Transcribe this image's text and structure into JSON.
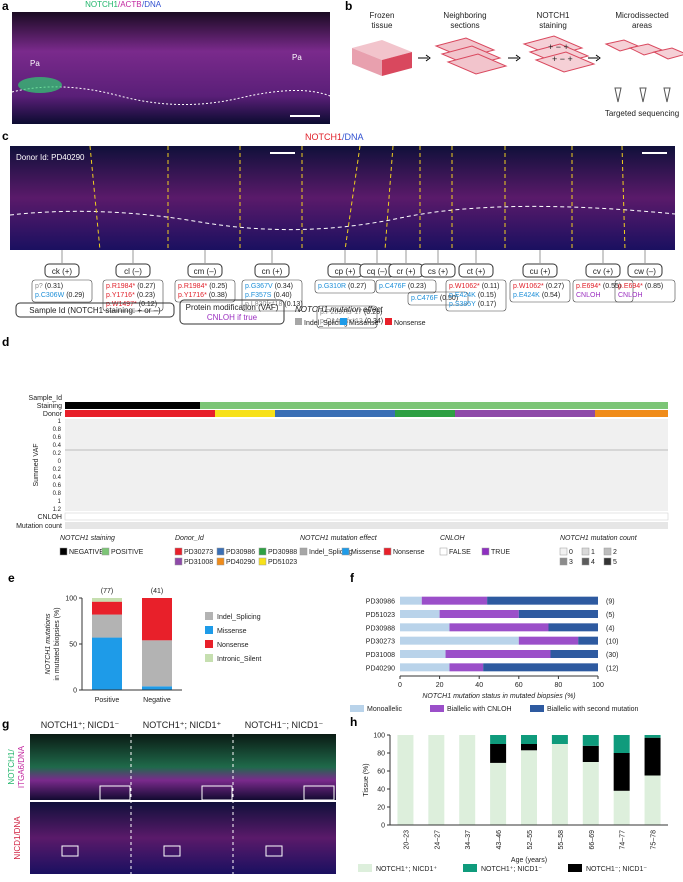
{
  "panels": {
    "a": {
      "letter": "a",
      "stain": [
        "NOTCH1",
        "/ACTB",
        "/DNA"
      ],
      "markers": [
        "Pa",
        "Pa"
      ]
    },
    "b": {
      "letter": "b",
      "steps": [
        [
          "Frozen",
          "tissue"
        ],
        [
          "Neighboring",
          "sections"
        ],
        [
          "NOTCH1",
          "staining"
        ],
        [
          "Microdissected",
          "areas"
        ]
      ],
      "output": "Targeted sequencing"
    },
    "c": {
      "letter": "c",
      "stain": [
        "NOTCH1",
        "/DNA"
      ],
      "donor": "Donor Id: PD40290",
      "samples": [
        {
          "id": "ck (+)",
          "mutations": [
            {
              "protein": "p?",
              "vaf": "(0.31)",
              "color": "#8c8c8c"
            },
            {
              "protein": "p.C306W",
              "vaf": "(0.29)",
              "color": "#1e8fd8"
            }
          ]
        },
        {
          "id": "cl (–)",
          "mutations": [
            {
              "protein": "p.R1984*",
              "vaf": "(0.27)",
              "color": "#e0202a"
            },
            {
              "protein": "p.Y1716*",
              "vaf": "(0.23)",
              "color": "#e0202a"
            },
            {
              "protein": "p.W1497*",
              "vaf": "(0.12)",
              "color": "#e0202a"
            }
          ]
        },
        {
          "id": "cm (–)",
          "mutations": [
            {
              "protein": "p.R1984*",
              "vaf": "(0.25)",
              "color": "#e0202a"
            },
            {
              "protein": "p.Y1716*",
              "vaf": "(0.38)",
              "color": "#e0202a"
            }
          ]
        },
        {
          "id": "cn (+)",
          "mutations": [
            {
              "protein": "p.G367V",
              "vaf": "(0.34)",
              "color": "#1e8fd8"
            },
            {
              "protein": "p.F357S",
              "vaf": "(0.40)",
              "color": "#1e8fd8"
            },
            {
              "protein": "p.L830fs*18",
              "vaf": "(0.13)",
              "color": "#8c8c8c"
            }
          ]
        },
        {
          "id": "cp (+)",
          "mutations": [
            {
              "protein": "p.G310R",
              "vaf": "(0.27)",
              "color": "#1e8fd8"
            }
          ]
        },
        {
          "id": "cq (–)",
          "mutations": [
            {
              "protein": "p.P2097fs*17",
              "vaf": "(0.26)",
              "color": "#8c8c8c"
            },
            {
              "protein": "p.Q1466fs*13",
              "vaf": "(0.34)",
              "color": "#8c8c8c"
            }
          ]
        },
        {
          "id": "cr (+)",
          "mutations": [
            {
              "protein": "p.C476F",
              "vaf": "(0.23)",
              "color": "#1e8fd8"
            }
          ]
        },
        {
          "id": "cs (+)",
          "mutations": [
            {
              "protein": "p.C476F",
              "vaf": "(0.50)",
              "color": "#1e8fd8"
            }
          ]
        },
        {
          "id": "ct (+)",
          "mutations": [
            {
              "protein": "p.W1062*",
              "vaf": "(0.11)",
              "color": "#e0202a"
            },
            {
              "protein": "p.E424K",
              "vaf": "(0.15)",
              "color": "#1e8fd8"
            },
            {
              "protein": "p.S385Y",
              "vaf": "(0.17)",
              "color": "#1e8fd8"
            }
          ]
        },
        {
          "id": "cu (+)",
          "mutations": [
            {
              "protein": "p.W1062*",
              "vaf": "(0.27)",
              "color": "#e0202a"
            },
            {
              "protein": "p.E424K",
              "vaf": "(0.54)",
              "color": "#1e8fd8"
            }
          ]
        },
        {
          "id": "cv (+)",
          "mutations": [
            {
              "protein": "p.E694*",
              "vaf": "(0.55)",
              "color": "#e0202a"
            },
            {
              "protein": "CNLOH",
              "color": "#9b2fc0"
            }
          ]
        },
        {
          "id": "cw (–)",
          "mutations": [
            {
              "protein": "p.E694*",
              "vaf": "(0.85)",
              "color": "#e0202a"
            },
            {
              "protein": "CNLOH",
              "color": "#9b2fc0"
            }
          ]
        }
      ],
      "key_sample": "Sample Id (NOTCH1 staining: + or –)",
      "key_protein": "Protein modification (VAF)",
      "key_cnloh": "CNLOH if true",
      "effect_title": "NOTCH1 mutation effect",
      "effects": [
        {
          "name": "Indel_Splicing",
          "color": "#a6a6a6"
        },
        {
          "name": "Missense",
          "color": "#1e9be8"
        },
        {
          "name": "Nonsense",
          "color": "#e8202a"
        }
      ]
    },
    "d": {
      "letter": "d",
      "rows": [
        "Sample_Id",
        "Staining",
        "Donor",
        "Summed VAF",
        "CNLOH",
        "Mutation count"
      ],
      "vaf_axis": [
        "1",
        "0.8",
        "0.6",
        "0.4",
        "0.2",
        "0",
        "0.2",
        "0.4",
        "0.6",
        "0.8",
        "1",
        "1.2"
      ],
      "legends": [
        {
          "title": "NOTCH1 staining",
          "items": [
            {
              "name": "NEGATIVE",
              "color": "#000000"
            },
            {
              "name": "POSITIVE",
              "color": "#7cc576"
            }
          ]
        },
        {
          "title": "Donor_Id",
          "items": [
            {
              "name": "PD30273",
              "color": "#e8202a"
            },
            {
              "name": "PD30986",
              "color": "#3a6fb5"
            },
            {
              "name": "PD30988",
              "color": "#2ea043"
            },
            {
              "name": "PD31008",
              "color": "#8e4aa8"
            },
            {
              "name": "PD40290",
              "color": "#f08c1a"
            },
            {
              "name": "PD51023",
              "color": "#f7e11a"
            }
          ]
        },
        {
          "title": "NOTCH1 mutation effect",
          "items": [
            {
              "name": "Indel_Splicing",
              "color": "#a6a6a6"
            },
            {
              "name": "Missense",
              "color": "#1e9be8"
            },
            {
              "name": "Nonsense",
              "color": "#e8202a"
            }
          ]
        },
        {
          "title": "CNLOH",
          "items": [
            {
              "name": "FALSE",
              "color": "#ffffff"
            },
            {
              "name": "TRUE",
              "color": "#8e2fc0"
            }
          ]
        },
        {
          "title": "NOTCH1 mutation count",
          "items": [
            {
              "name": "0",
              "color": "#f2f2f2"
            },
            {
              "name": "1",
              "color": "#d9d9d9"
            },
            {
              "name": "2",
              "color": "#bdbdbd"
            },
            {
              "name": "3",
              "color": "#8c8c8c"
            },
            {
              "name": "4",
              "color": "#5c5c5c"
            },
            {
              "name": "5",
              "color": "#333333"
            }
          ]
        }
      ]
    },
    "g": {
      "letter": "g",
      "columns": [
        "NOTCH1⁺; NICD1⁻",
        "NOTCH1⁺; NICD1⁺",
        "NOTCH1⁻; NICD1⁻"
      ],
      "top_label": [
        "NOTCH1/",
        "ITGA6/DNA"
      ],
      "bottom_label": "NICD1/DNA"
    }
  },
  "chart_data": [
    {
      "type": "bar",
      "panel": "e",
      "stacked": true,
      "stack_order": [
        1,
        0,
        2,
        3
      ],
      "categories": [
        "Positive",
        "Negative"
      ],
      "annotations": [
        "(77)",
        "(41)"
      ],
      "ylabel": [
        "NOTCH1 mutations",
        "in mutated biopsies (%)"
      ],
      "series": [
        {
          "name": "Indel_Splicing",
          "color": "#b3b3b3",
          "values": [
            25,
            50
          ]
        },
        {
          "name": "Missense",
          "color": "#1e9be8",
          "values": [
            57,
            4
          ]
        },
        {
          "name": "Nonsense",
          "color": "#e8202a",
          "values": [
            14,
            46
          ]
        },
        {
          "name": "Intronic_Silent",
          "color": "#c6dfb0",
          "values": [
            4,
            0
          ]
        }
      ],
      "ylim": [
        0,
        100
      ],
      "yticks": [
        0,
        50,
        100
      ]
    },
    {
      "type": "bar",
      "panel": "f",
      "stacked": true,
      "horizontal": true,
      "categories": [
        "PD30986",
        "PD51023",
        "PD30988",
        "PD30273",
        "PD31008",
        "PD40290"
      ],
      "annotations": [
        "(9)",
        "(5)",
        "(4)",
        "(10)",
        "(30)",
        "(12)"
      ],
      "xlabel": "NOTCH1 mutation status in mutated biopsies (%)",
      "series": [
        {
          "name": "Monoallelic",
          "color": "#b9d3ea",
          "values": [
            11,
            20,
            25,
            60,
            23,
            25
          ]
        },
        {
          "name": "Biallelic with CNLOH",
          "color": "#9b4fc9",
          "values": [
            33,
            40,
            50,
            30,
            53,
            17
          ]
        },
        {
          "name": "Biallelic with second mutation",
          "color": "#2e5aa0",
          "values": [
            56,
            40,
            25,
            10,
            24,
            58
          ]
        }
      ],
      "xlim": [
        0,
        100
      ],
      "xticks": [
        0,
        20,
        40,
        60,
        80,
        100
      ]
    },
    {
      "type": "bar",
      "panel": "h",
      "stacked": true,
      "stack_order": [
        0,
        2,
        1
      ],
      "categories": [
        "20–23",
        "24–27",
        "34–37",
        "43–46",
        "52–55",
        "55–58",
        "66–69",
        "74–77",
        "75–78"
      ],
      "xlabel": "Age (years)",
      "ylabel": [
        "Tissue (%)"
      ],
      "series": [
        {
          "name": "NOTCH1⁺; NICD1⁺",
          "color": "#ddefdc",
          "values": [
            100,
            100,
            100,
            69,
            83,
            90,
            70,
            38,
            55
          ]
        },
        {
          "name": "NOTCH1⁺; NICD1⁻",
          "color": "#0f9b7c",
          "values": [
            0,
            0,
            0,
            10,
            10,
            10,
            12,
            20,
            3
          ]
        },
        {
          "name": "NOTCH1⁻; NICD1⁻",
          "color": "#000000",
          "values": [
            0,
            0,
            0,
            21,
            7,
            0,
            18,
            42,
            42
          ]
        }
      ],
      "ylim": [
        0,
        100
      ],
      "yticks": [
        0,
        20,
        40,
        60,
        80,
        100
      ]
    }
  ]
}
